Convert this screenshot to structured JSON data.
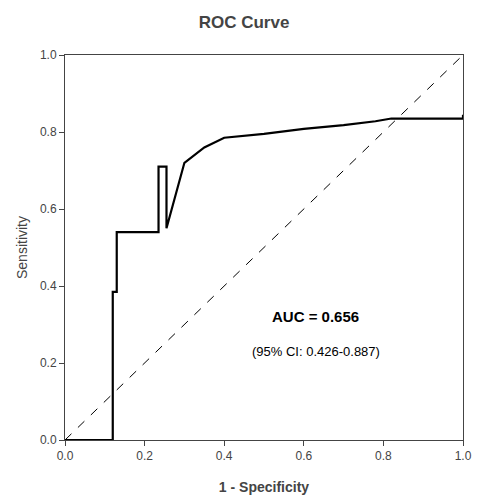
{
  "chart_data": {
    "type": "line",
    "title": "ROC Curve",
    "xlabel": "1 - Specificity",
    "ylabel": "Sensitivity",
    "xlim": [
      0.0,
      1.0
    ],
    "ylim": [
      0.0,
      1.0
    ],
    "xticks": [
      {
        "value": 0.0,
        "label": "0.0"
      },
      0.2,
      0.4,
      0.6,
      0.8,
      {
        "value": 1.0,
        "label": "1.0"
      }
    ],
    "yticks": [
      {
        "value": 0.0,
        "label": "0.0"
      },
      0.2,
      0.4,
      0.6,
      0.8,
      {
        "value": 1.0,
        "label": "1.0"
      }
    ],
    "grid": false,
    "series": [
      {
        "x": [
          0.0,
          1.0
        ],
        "values": [
          0.0,
          1.0
        ],
        "color": "#000000",
        "line_style": "dashed"
      },
      {
        "x": [
          0.0,
          0.12,
          0.12,
          0.13,
          0.13,
          0.235,
          0.235,
          0.255,
          0.255,
          0.3,
          0.35,
          0.4,
          0.5,
          0.6,
          0.7,
          0.78,
          0.82,
          1.0,
          1.0
        ],
        "values": [
          0.0,
          0.0,
          0.385,
          0.385,
          0.54,
          0.54,
          0.71,
          0.71,
          0.55,
          0.72,
          0.76,
          0.785,
          0.795,
          0.808,
          0.818,
          0.828,
          0.835,
          0.835,
          0.845
        ],
        "color": "#000000",
        "line_style": "solid"
      }
    ],
    "annotations": [
      {
        "text": "AUC = 0.656"
      },
      {
        "text": "(95% CI: 0.426-0.887)"
      }
    ]
  }
}
